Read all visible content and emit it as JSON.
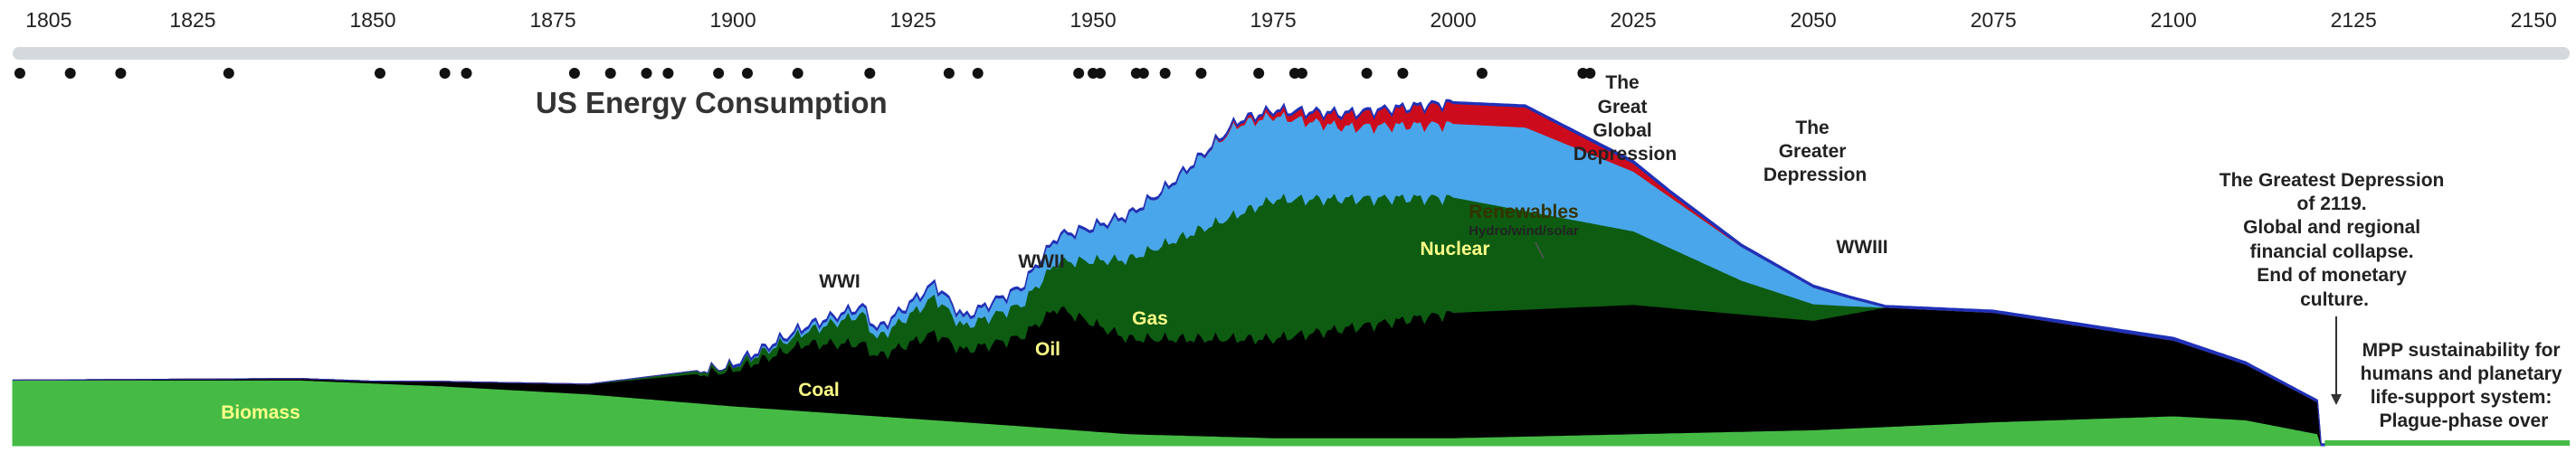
{
  "chart_data": {
    "type": "area",
    "title": "US Energy Consumption",
    "xlim": [
      1800,
      2155
    ],
    "x_ticks": [
      1805,
      1825,
      1850,
      1875,
      1900,
      1925,
      1950,
      1975,
      2000,
      2025,
      2050,
      2075,
      2100,
      2125,
      2150
    ],
    "event_years": [
      1801,
      1808,
      1815,
      1830,
      1851,
      1860,
      1863,
      1878,
      1883,
      1888,
      1891,
      1898,
      1902,
      1909,
      1919,
      1930,
      1934,
      1948,
      1950,
      1951,
      1956,
      1957,
      1960,
      1965,
      1973,
      1978,
      1979,
      1988,
      1993,
      2004,
      2018,
      2019
    ],
    "series": [
      {
        "name": "Biomass",
        "color": "#45bb45",
        "label_color": "#ffff88",
        "x": [
          1800,
          1840,
          1860,
          1880,
          1900,
          1920,
          1940,
          1955,
          1975,
          2000,
          2025,
          2050,
          2075,
          2100,
          2110,
          2120
        ],
        "values": [
          3.3,
          3.3,
          3.0,
          2.6,
          2.0,
          1.5,
          1.0,
          0.6,
          0.4,
          0.4,
          0.6,
          0.8,
          1.2,
          1.5,
          1.3,
          0.6
        ]
      },
      {
        "name": "Coal",
        "color": "#000000",
        "label_color": "#ffff88",
        "x": [
          1800,
          1850,
          1880,
          1900,
          1910,
          1918,
          1920,
          1928,
          1932,
          1940,
          1945,
          1955,
          1975,
          2000,
          2025,
          2050,
          2060,
          2075,
          2100,
          2110,
          2120
        ],
        "values": [
          0,
          0.1,
          0.5,
          1.8,
          3.4,
          3.6,
          3.0,
          4.4,
          3.6,
          4.5,
          6.1,
          4.8,
          5.0,
          6.3,
          6.5,
          5.5,
          6.0,
          5.5,
          3.8,
          2.8,
          1.6
        ]
      },
      {
        "name": "Oil",
        "color": "#0d5c12",
        "label_color": "#ffff88",
        "x": [
          1880,
          1900,
          1910,
          1918,
          1920,
          1928,
          1932,
          1940,
          1945,
          1955,
          1975,
          2000,
          2025,
          2040,
          2055,
          2060
        ],
        "values": [
          0,
          0.2,
          0.6,
          1.5,
          0.9,
          1.8,
          1.2,
          1.6,
          2.3,
          4.0,
          7.0,
          5.8,
          3.7,
          1.7,
          0.4,
          0
        ]
      },
      {
        "name": "Gas",
        "color": "#49a6ea",
        "label_color": "#ffff88",
        "x": [
          1900,
          1918,
          1928,
          1932,
          1940,
          1950,
          1960,
          1970,
          1975,
          1985,
          2000,
          2010,
          2025,
          2040,
          2055,
          2060
        ],
        "values": [
          0,
          0.3,
          0.6,
          0.4,
          0.8,
          1.6,
          2.7,
          4.5,
          4.2,
          3.6,
          3.7,
          4.2,
          3.0,
          1.7,
          0.4,
          0
        ]
      },
      {
        "name": "Nuclear",
        "color": "#cc0c1d",
        "label_color": "#ffff88",
        "x": [
          1965,
          1975,
          1985,
          2000,
          2010,
          2020,
          2030,
          2040
        ],
        "values": [
          0,
          0.2,
          0.6,
          1.0,
          1.0,
          0.6,
          0.2,
          0
        ]
      },
      {
        "name": "Renewables",
        "color": "#1f31b8",
        "label_color": "#333300",
        "x": [
          1900,
          1960,
          2000,
          2025,
          2060,
          2100,
          2121
        ],
        "values": [
          0.1,
          0.1,
          0.1,
          0.15,
          0.1,
          0.15,
          0.1
        ]
      }
    ],
    "annotations": [
      {
        "id": "wwi",
        "lines": [
          "WWI"
        ]
      },
      {
        "id": "wwii",
        "lines": [
          "WWII"
        ]
      },
      {
        "id": "wwiii",
        "lines": [
          "WWIII"
        ]
      },
      {
        "id": "great-global-depression",
        "lines": [
          "The",
          "Great",
          "Global",
          "Depression"
        ]
      },
      {
        "id": "greater-depression",
        "lines": [
          "The",
          "Greater",
          "Depression"
        ]
      },
      {
        "id": "greatest-depression",
        "lines": [
          "The Greatest Depression",
          "of 2119.",
          "Global and regional",
          "financial collapse.",
          "End of monetary",
          "culture."
        ]
      },
      {
        "id": "mpp",
        "lines": [
          "MPP sustainability for",
          "humans and planetary",
          "life-support system:",
          "Plague-phase over"
        ]
      }
    ],
    "renewables_sublabel": "Hydro/wind/solar"
  }
}
